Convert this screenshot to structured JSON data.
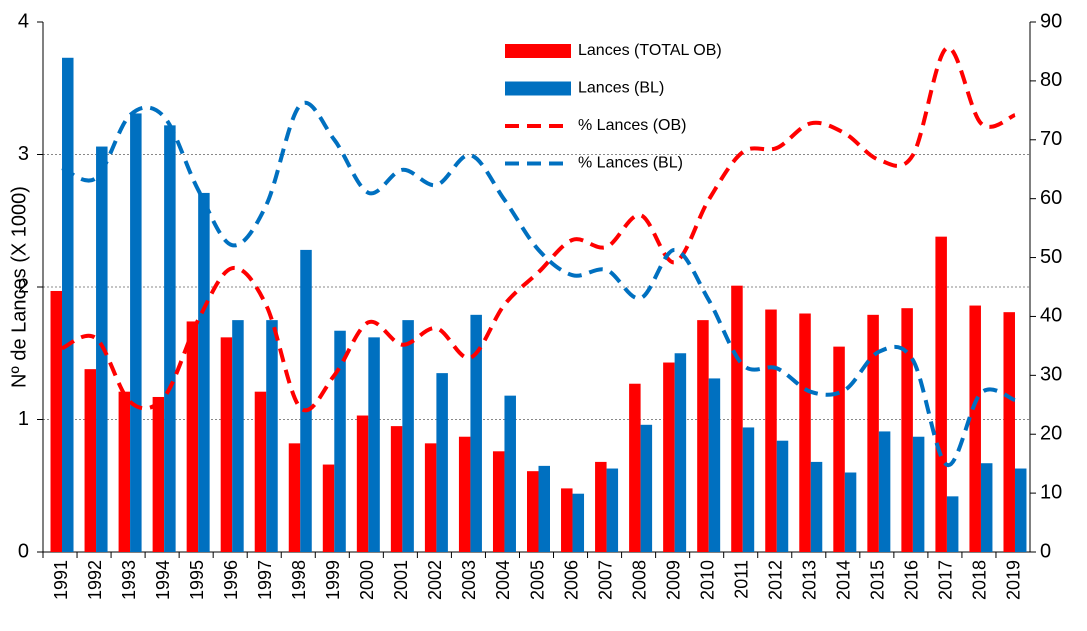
{
  "chart_data": {
    "type": "bar",
    "y_label": "Nº de Lances (X 1000)",
    "categories": [
      "1991",
      "1992",
      "1993",
      "1994",
      "1995",
      "1996",
      "1997",
      "1998",
      "1999",
      "2000",
      "2001",
      "2002",
      "2003",
      "2004",
      "2005",
      "2006",
      "2007",
      "2008",
      "2009",
      "2010",
      "2011",
      "2012",
      "2013",
      "2014",
      "2015",
      "2016",
      "2017",
      "2018",
      "2019"
    ],
    "series": [
      {
        "name": "Lances (TOTAL OB)",
        "type": "bar",
        "color": "#ff0000",
        "values": [
          1.97,
          1.38,
          1.21,
          1.17,
          1.74,
          1.62,
          1.21,
          0.82,
          0.66,
          1.03,
          0.95,
          0.82,
          0.87,
          0.76,
          0.61,
          0.48,
          0.68,
          1.27,
          1.43,
          1.75,
          2.01,
          1.83,
          1.8,
          1.55,
          1.79,
          1.84,
          2.38,
          1.86,
          1.81
        ]
      },
      {
        "name": "Lances (BL)",
        "type": "bar",
        "color": "#0070c0",
        "values": [
          3.73,
          3.06,
          3.31,
          3.22,
          2.71,
          1.75,
          1.75,
          2.28,
          1.67,
          1.62,
          1.75,
          1.35,
          1.79,
          1.18,
          0.65,
          0.44,
          0.63,
          0.96,
          1.5,
          1.31,
          0.94,
          0.84,
          0.68,
          0.6,
          0.91,
          0.87,
          0.42,
          0.67,
          0.63
        ]
      },
      {
        "name": "% Lances (OB)",
        "type": "line",
        "axis": "y2",
        "color": "#ff0000",
        "values": [
          34.6,
          36.3,
          25.5,
          26.3,
          39.4,
          48.2,
          41.9,
          24.5,
          30,
          39,
          35.2,
          38,
          33,
          42,
          47.5,
          53,
          51.8,
          57.2,
          49.2,
          59.8,
          67.9,
          68.6,
          72.8,
          71.1,
          66.6,
          67.4,
          85.6,
          72.8,
          74.2
        ]
      },
      {
        "name": "% Lances (BL)",
        "type": "line",
        "axis": "y2",
        "color": "#0070c0",
        "values": [
          65.2,
          63.5,
          74.2,
          73.9,
          61.5,
          52.1,
          58.9,
          75.9,
          70,
          61,
          64.9,
          62.3,
          67.4,
          59.8,
          51.3,
          47,
          47.9,
          43.1,
          51.3,
          42.8,
          31.8,
          31.2,
          27.2,
          27.5,
          34,
          32.6,
          14.8,
          27,
          25.8
        ]
      }
    ],
    "ylim": [
      0,
      4
    ],
    "yticks": [
      0,
      1,
      2,
      3,
      4
    ],
    "y2lim": [
      0,
      90
    ],
    "y2ticks": [
      0,
      10,
      20,
      30,
      40,
      50,
      60,
      70,
      80,
      90
    ],
    "grid": true,
    "legend": "top"
  }
}
